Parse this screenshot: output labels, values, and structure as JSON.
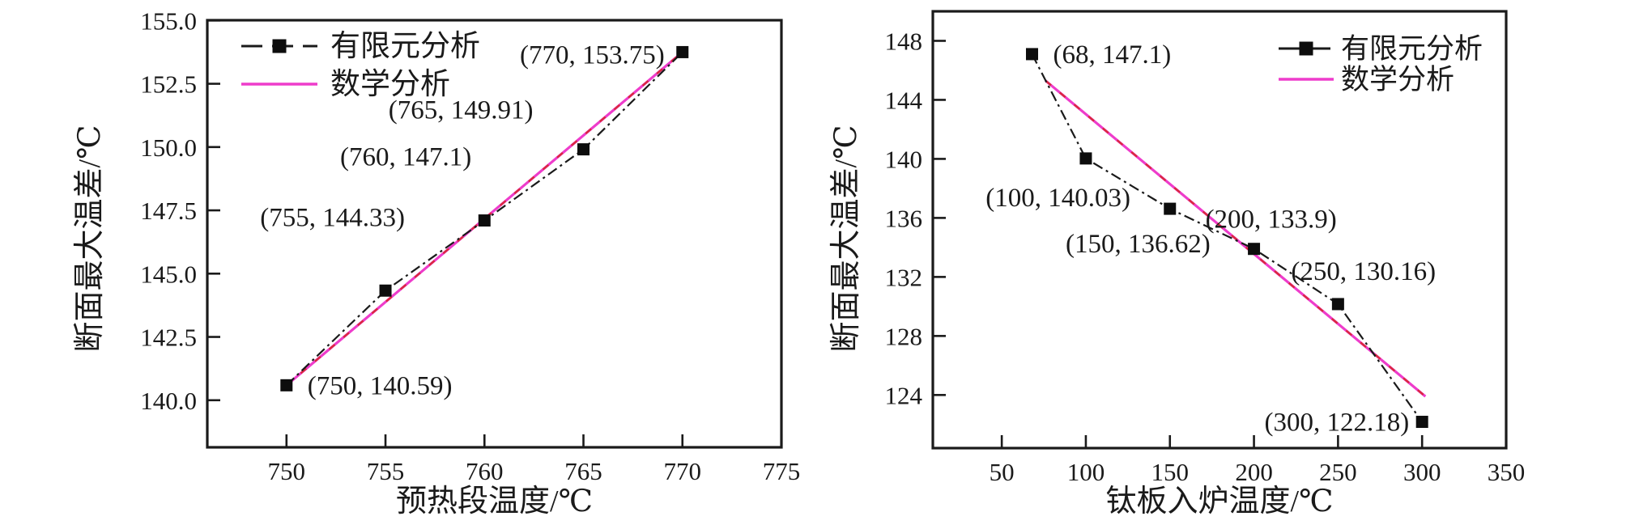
{
  "figure": {
    "background": "#ffffff",
    "colors": {
      "axis": "#1a1a1a",
      "fea_line": "#1a1a1a",
      "marker": "#0d0d0d",
      "math_line": "#ee3ccb",
      "math_accent": "#d62626",
      "text": "#1a1a1a"
    }
  },
  "chart_data": [
    {
      "type": "line",
      "title": "",
      "xlabel": "预热段温度/℃",
      "ylabel": "断面最大温差/℃",
      "xlim": [
        746,
        775
      ],
      "ylim": [
        138.14,
        155.01
      ],
      "x_ticks": [
        {
          "v": 750,
          "label": "750"
        },
        {
          "v": 755,
          "label": "755"
        },
        {
          "v": 760,
          "label": "760"
        },
        {
          "v": 765,
          "label": "765"
        },
        {
          "v": 770,
          "label": "770"
        },
        {
          "v": 775,
          "label": "775"
        }
      ],
      "y_ticks": [
        {
          "v": 140.0,
          "label": "140.0"
        },
        {
          "v": 142.5,
          "label": "142.5"
        },
        {
          "v": 145.0,
          "label": "145.0"
        },
        {
          "v": 147.5,
          "label": "147.5"
        },
        {
          "v": 150.0,
          "label": "150.0"
        },
        {
          "v": 152.5,
          "label": "152.5"
        },
        {
          "v": 155.0,
          "label": "155.0"
        }
      ],
      "grid": "off",
      "legend": {
        "position": "top-left",
        "entries": [
          {
            "label": "有限元分析",
            "style": "fea"
          },
          {
            "label": "数学分析",
            "style": "math"
          }
        ]
      },
      "series": [
        {
          "name": "数学分析",
          "style": "math",
          "points": [
            [
              750,
              140.59
            ],
            [
              770,
              153.75
            ]
          ]
        },
        {
          "name": "有限元分析",
          "style": "fea",
          "points": [
            [
              750,
              140.59
            ],
            [
              755,
              144.33
            ],
            [
              760,
              147.1
            ],
            [
              765,
              149.91
            ],
            [
              770,
              153.75
            ]
          ],
          "point_labels": [
            {
              "text": "(750, 140.59)",
              "anchor": "start",
              "dx": 26,
              "dy": 11
            },
            {
              "text": "(755, 144.33)",
              "anchor": "end",
              "dx": 24,
              "dy": -80
            },
            {
              "text": "(760, 147.1)",
              "anchor": "end",
              "dx": -16,
              "dy": -68
            },
            {
              "text": "(765, 149.91)",
              "anchor": "end",
              "dx": -62,
              "dy": -38
            },
            {
              "text": "(770, 153.75)",
              "anchor": "end",
              "dx": -22,
              "dy": 14
            }
          ]
        }
      ]
    },
    {
      "type": "line",
      "title": "",
      "xlabel": "钛板入炉温度/℃",
      "ylabel": "断面最大温差/℃",
      "xlim": [
        9,
        350
      ],
      "ylim": [
        120.4,
        150.0
      ],
      "x_ticks": [
        {
          "v": 50,
          "label": "50"
        },
        {
          "v": 100,
          "label": "100"
        },
        {
          "v": 150,
          "label": "150"
        },
        {
          "v": 200,
          "label": "200"
        },
        {
          "v": 250,
          "label": "250"
        },
        {
          "v": 300,
          "label": "300"
        },
        {
          "v": 350,
          "label": "350"
        }
      ],
      "y_ticks": [
        {
          "v": 124,
          "label": "124"
        },
        {
          "v": 128,
          "label": "128"
        },
        {
          "v": 132,
          "label": "132"
        },
        {
          "v": 136,
          "label": "136"
        },
        {
          "v": 140,
          "label": "140"
        },
        {
          "v": 144,
          "label": "144"
        },
        {
          "v": 148,
          "label": "148"
        }
      ],
      "grid": "off",
      "legend": {
        "position": "top-right",
        "entries": [
          {
            "label": "有限元分析",
            "style": "fea"
          },
          {
            "label": "数学分析",
            "style": "math"
          }
        ]
      },
      "series": [
        {
          "name": "数学分析",
          "style": "math",
          "points": [
            [
              76,
              145.3
            ],
            [
              302,
              123.9
            ]
          ]
        },
        {
          "name": "有限元分析",
          "style": "fea",
          "points": [
            [
              68,
              147.1
            ],
            [
              100,
              140.03
            ],
            [
              150,
              136.62
            ],
            [
              200,
              133.9
            ],
            [
              250,
              130.16
            ],
            [
              300,
              122.18
            ]
          ],
          "point_labels": [
            {
              "text": "(68, 147.1)",
              "anchor": "start",
              "dx": 26,
              "dy": 11
            },
            {
              "text": "(100, 140.03)",
              "anchor": "end",
              "dx": 55,
              "dy": 59
            },
            {
              "text": "(150, 136.62)",
              "anchor": "end",
              "dx": 50,
              "dy": 54
            },
            {
              "text": "(200, 133.9)",
              "anchor": "start",
              "dx": -60,
              "dy": -26
            },
            {
              "text": "(250, 130.16)",
              "anchor": "start",
              "dx": -58,
              "dy": -30
            },
            {
              "text": "(300, 122.18)",
              "anchor": "end",
              "dx": -16,
              "dy": 11
            }
          ]
        }
      ]
    }
  ]
}
